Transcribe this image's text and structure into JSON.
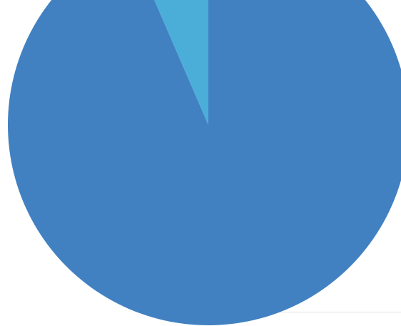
{
  "chart_data": {
    "type": "pie",
    "title": "",
    "slices": [
      {
        "label": "",
        "value": 93.5,
        "color": "#4181C2"
      },
      {
        "label": "",
        "value": 6.5,
        "color": "#4AAED9"
      }
    ],
    "legend": "none",
    "grid": false
  }
}
